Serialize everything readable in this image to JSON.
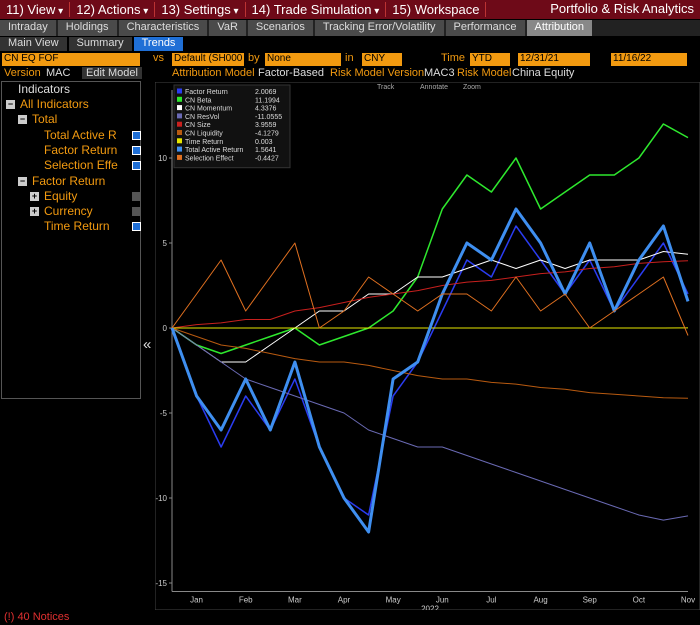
{
  "menu": [
    "11) View",
    "12) Actions",
    "13) Settings",
    "14) Trade Simulation",
    "15) Workspace"
  ],
  "app_title": "Portfolio & Risk Analytics",
  "tabs": [
    "Intraday",
    "Holdings",
    "Characteristics",
    "VaR",
    "Scenarios",
    "Tracking Error/Volatility",
    "Performance",
    "Attribution"
  ],
  "subtabs": [
    "Main View",
    "Summary",
    "Trends"
  ],
  "controls": {
    "portfolio": "CN EQ FOF",
    "vs": "vs",
    "benchmark": "Default (SH000",
    "by": "by",
    "group": "None",
    "in": "in",
    "currency": "CNY",
    "time_label": "Time",
    "period": "YTD",
    "start": "12/31/21",
    "end": "11/16/22"
  },
  "model_row": {
    "version_label": "Version",
    "version": "MAC",
    "edit": "Edit Model",
    "attr_label": "Attribution Model",
    "attr": "Factor-Based",
    "rmv_label": "Risk Model Version",
    "rmv": "MAC3",
    "rm_label": "Risk Model",
    "rm": "China Equity"
  },
  "tree": {
    "header": "Indicators",
    "items": [
      {
        "label": "All Indicators",
        "level": 0,
        "box": "minus"
      },
      {
        "label": "Total",
        "level": 1,
        "box": "minus"
      },
      {
        "label": "Total Active R",
        "level": 2,
        "checked": true
      },
      {
        "label": "Factor Return",
        "level": 2,
        "checked": true
      },
      {
        "label": "Selection Effe",
        "level": 2,
        "checked": true
      },
      {
        "label": "Factor Return",
        "level": 1,
        "box": "minus"
      },
      {
        "label": "Equity",
        "level": 2,
        "box": "plus",
        "checked": false
      },
      {
        "label": "Currency",
        "level": 2,
        "box": "plus",
        "checked": false
      },
      {
        "label": "Time Return",
        "level": 2,
        "checked": true
      }
    ]
  },
  "toolbar": [
    "Track",
    "Annotate",
    "Zoom"
  ],
  "footer": "(!) 40 Notices",
  "chart_data": {
    "type": "line",
    "x_label": "2022",
    "categories": [
      null,
      "Jan",
      null,
      "Feb",
      null,
      "Mar",
      null,
      "Apr",
      null,
      "May",
      null,
      "Jun",
      null,
      "Jul",
      null,
      "Aug",
      null,
      "Sep",
      null,
      "Oct",
      null,
      "Nov"
    ],
    "ylim": [
      -15.5,
      14
    ],
    "yticks": [
      -15,
      -10,
      -5,
      0,
      5,
      10
    ],
    "grid": false,
    "series": [
      {
        "name": "Factor Return",
        "latest": "2.0069",
        "color": "#2a3cf0",
        "width": 1.5,
        "values": [
          0,
          -4,
          -7,
          -4,
          -6,
          -3,
          -7,
          -10,
          -11,
          -4,
          -2,
          1,
          4,
          3,
          6,
          4,
          2,
          4,
          1,
          3,
          5,
          2.0069
        ]
      },
      {
        "name": "CN Beta",
        "latest": "11.1994",
        "color": "#2ee82e",
        "width": 1.5,
        "values": [
          0,
          -1,
          -1.5,
          -1,
          -0.5,
          0,
          -1,
          -0.5,
          0,
          1,
          3,
          7,
          9,
          8,
          10,
          7,
          8,
          9,
          9,
          10,
          12,
          11.1994
        ]
      },
      {
        "name": "CN Momentum",
        "latest": "4.3376",
        "color": "#ffffff",
        "width": 1,
        "values": [
          0,
          -1,
          -2,
          -2,
          -1,
          0,
          1,
          1,
          2,
          2,
          3,
          3,
          3.5,
          4,
          3.5,
          4,
          3.5,
          4,
          4,
          4,
          4.5,
          4.3376
        ]
      },
      {
        "name": "CN ResVol",
        "latest": "-11.0555",
        "color": "#6a6ab4",
        "width": 1,
        "values": [
          0,
          -1,
          -2,
          -3,
          -3.5,
          -4,
          -4.5,
          -5,
          -6,
          -6.5,
          -7,
          -7,
          -7.5,
          -8,
          -8.5,
          -9,
          -9.5,
          -10,
          -10.5,
          -11,
          -11.3,
          -11.0555
        ]
      },
      {
        "name": "CN Size",
        "latest": "3.9559",
        "color": "#c8201e",
        "width": 1,
        "values": [
          0,
          0.2,
          0.3,
          0.5,
          0.5,
          1,
          1.2,
          1.5,
          1.8,
          2,
          2.2,
          2.5,
          2.7,
          2.8,
          3,
          3.2,
          3.3,
          3.5,
          3.6,
          3.8,
          3.9,
          3.9559
        ]
      },
      {
        "name": "CN Liquidity",
        "latest": "-4.1279",
        "color": "#b85a10",
        "width": 1,
        "values": [
          0,
          -0.5,
          -1,
          -1.2,
          -1.5,
          -1.8,
          -2,
          -2,
          -2.2,
          -2.5,
          -2.8,
          -3,
          -3,
          -3.2,
          -3.3,
          -3.5,
          -3.6,
          -3.8,
          -3.9,
          -4,
          -4.1,
          -4.1279
        ]
      },
      {
        "name": "Time Return",
        "latest": "0.003",
        "color": "#e6e600",
        "width": 1,
        "values": [
          0,
          0,
          0,
          0,
          0,
          0,
          0,
          0,
          0,
          0,
          0,
          0,
          0,
          0,
          0,
          0,
          0,
          0,
          0,
          0,
          0,
          0.003
        ]
      },
      {
        "name": "Total Active Return",
        "latest": "1.5641",
        "color": "#3f8ff0",
        "width": 3,
        "values": [
          0,
          -4,
          -6,
          -3,
          -6,
          -2,
          -7,
          -10,
          -12,
          -3,
          -2,
          2,
          5,
          4,
          7,
          5,
          2,
          5,
          1,
          4,
          6,
          1.5641
        ]
      },
      {
        "name": "Selection Effect",
        "latest": "-0.4427",
        "color": "#e07020",
        "width": 1,
        "values": [
          0,
          2,
          4,
          1,
          3,
          5,
          0,
          1,
          3,
          2,
          1,
          2,
          2,
          1,
          3,
          1,
          2,
          0,
          1,
          2,
          3,
          -0.4427
        ]
      }
    ]
  }
}
